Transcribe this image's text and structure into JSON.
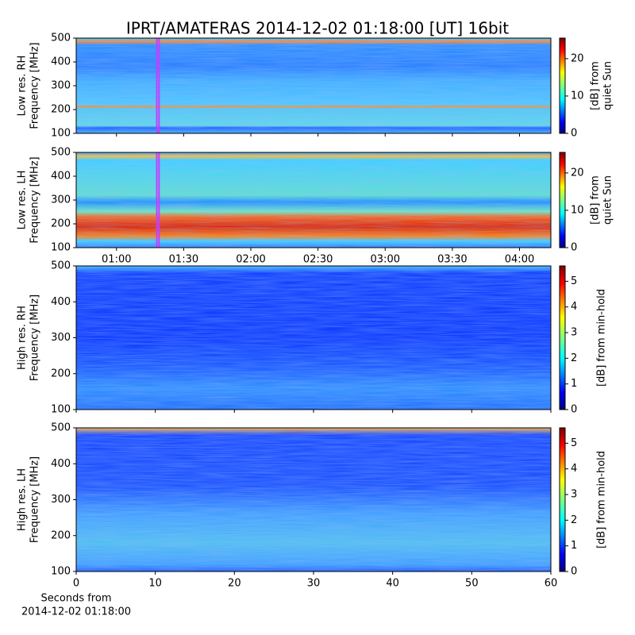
{
  "title": "IPRT/AMATERAS 2014-12-02 01:18:00 [UT]   16bit",
  "chart_data": [
    {
      "type": "heatmap",
      "ylabel": [
        "Low res. RH",
        "Frequency [MHz]"
      ],
      "ylim": [
        100,
        500
      ],
      "yticks": [
        100,
        200,
        300,
        400,
        500
      ],
      "xlim": [
        42,
        254
      ],
      "xticks": [
        {
          "value": 60,
          "label": "01:00"
        },
        {
          "value": 90,
          "label": "01:30"
        },
        {
          "value": 120,
          "label": "02:00"
        },
        {
          "value": 150,
          "label": "02:30"
        },
        {
          "value": 180,
          "label": "03:00"
        },
        {
          "value": 210,
          "label": "03:30"
        },
        {
          "value": 240,
          "label": "04:00"
        }
      ],
      "show_xticklabels": false,
      "highlight_x": [
        78,
        79
      ],
      "highlight_color": "#c040ff",
      "colorbar": {
        "label": [
          "[dB] from",
          "quiet Sun"
        ],
        "lim": [
          0,
          25.5
        ],
        "ticks": [
          0,
          10,
          20
        ],
        "colormap": "jet"
      }
    },
    {
      "type": "heatmap",
      "ylabel": [
        "Low res. LH",
        "Frequency [MHz]"
      ],
      "ylim": [
        100,
        500
      ],
      "yticks": [
        100,
        200,
        300,
        400,
        500
      ],
      "xlim": [
        42,
        254
      ],
      "xticks": [
        {
          "value": 60,
          "label": "01:00"
        },
        {
          "value": 90,
          "label": "01:30"
        },
        {
          "value": 120,
          "label": "02:00"
        },
        {
          "value": 150,
          "label": "02:30"
        },
        {
          "value": 180,
          "label": "03:00"
        },
        {
          "value": 210,
          "label": "03:30"
        },
        {
          "value": 240,
          "label": "04:00"
        }
      ],
      "show_xticklabels": true,
      "highlight_x": [
        78,
        79
      ],
      "highlight_color": "#c040ff",
      "colorbar": {
        "label": [
          "[dB] from",
          "quiet Sun"
        ],
        "lim": [
          0,
          25.5
        ],
        "ticks": [
          0,
          10,
          20
        ],
        "colormap": "jet"
      }
    },
    {
      "type": "heatmap",
      "ylabel": [
        "High res. RH",
        "Frequency [MHz]"
      ],
      "ylim": [
        100,
        500
      ],
      "yticks": [
        100,
        200,
        300,
        400,
        500
      ],
      "xlim": [
        0,
        60
      ],
      "xticks": [
        0,
        10,
        20,
        30,
        40,
        50,
        60
      ],
      "show_xticklabels": false,
      "colorbar": {
        "label": [
          "[dB] from min-hold"
        ],
        "lim": [
          0,
          5.6
        ],
        "ticks": [
          0,
          1,
          2,
          3,
          4,
          5
        ],
        "colormap": "jet"
      }
    },
    {
      "type": "heatmap",
      "ylabel": [
        "High res. LH",
        "Frequency [MHz]"
      ],
      "ylim": [
        100,
        500
      ],
      "yticks": [
        100,
        200,
        300,
        400,
        500
      ],
      "xlim": [
        0,
        60
      ],
      "xticks": [
        0,
        10,
        20,
        30,
        40,
        50,
        60
      ],
      "show_xticklabels": true,
      "xlabel": [
        "Seconds from",
        "2014-12-02 01:18:00"
      ],
      "colorbar": {
        "label": [
          "[dB] from min-hold"
        ],
        "lim": [
          0,
          5.6
        ],
        "ticks": [
          0,
          1,
          2,
          3,
          4,
          5
        ],
        "colormap": "jet"
      }
    }
  ]
}
